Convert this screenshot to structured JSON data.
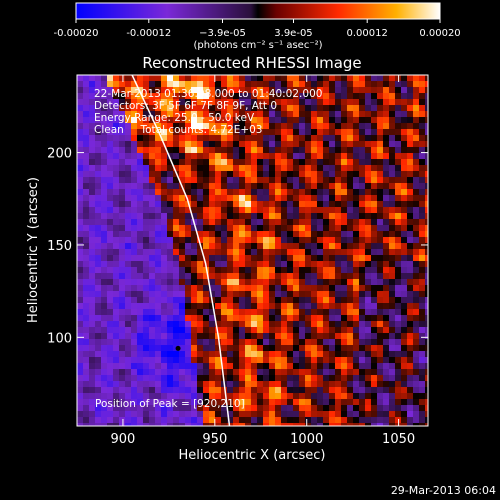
{
  "chart_data": {
    "type": "heatmap",
    "title": "Reconstructed RHESSI Image",
    "xlabel": "Heliocentric X (arcsec)",
    "ylabel": "Heliocentric Y (arcsec)",
    "xlim": [
      875,
      1066
    ],
    "ylim": [
      52,
      242
    ],
    "x_ticks": [
      900,
      950,
      1000,
      1050
    ],
    "y_ticks": [
      100,
      150,
      200
    ],
    "x_tick_labels": [
      "900",
      "950",
      "1000",
      "1050"
    ],
    "y_tick_labels": [
      "100",
      "150",
      "200"
    ],
    "colorbar": {
      "range": [
        -0.0002,
        0.0002
      ],
      "ticks": [
        -0.0002,
        -0.00012,
        -3.9e-05,
        3.9e-05,
        0.00012,
        0.0002
      ],
      "tick_labels": [
        "-0.00020",
        "-0.00012",
        "−3.9e-05",
        "3.9e-05",
        "0.00012",
        "0.00020"
      ],
      "units_label": "(photons cm⁻² s⁻¹ asec⁻²)",
      "colormap": [
        "#0000ff",
        "#8a2be2",
        "#3a1a5e",
        "#000000",
        "#ff2200",
        "#ffa000",
        "#ffffff"
      ]
    },
    "info_lines": [
      "22-Mar-2013 01:36:08.000 to 01:40:02.000",
      "Detectors: 3F 5F 6F 7F 8F 9F, Att 0",
      "Energy Range: 25.0 - 50.0 keV",
      "Clean     Total counts: 4.72E+03"
    ],
    "peak_label": "Position of Peak = [920,210]",
    "peak": [
      920,
      210
    ],
    "limb_curve": [
      [
        905,
        242
      ],
      [
        920,
        210
      ],
      [
        935,
        175
      ],
      [
        945,
        140
      ],
      [
        952,
        100
      ],
      [
        958,
        52
      ]
    ],
    "footer": "29-Mar-2013 06:04"
  }
}
